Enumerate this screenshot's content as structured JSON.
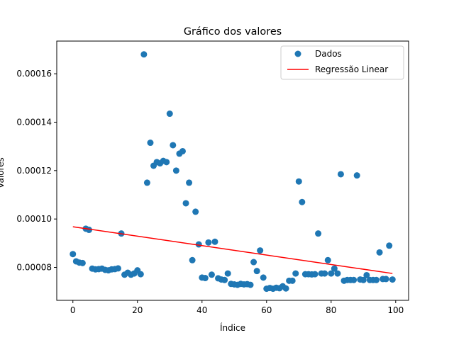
{
  "chart_data": {
    "type": "scatter",
    "title": "Gráfico dos valores",
    "xlabel": "Índice",
    "ylabel": "Valores",
    "xlim": [
      -5.0,
      104.0
    ],
    "ylim": [
      6.64e-05,
      0.0001735
    ],
    "xticks": [
      0,
      20,
      40,
      60,
      80,
      100
    ],
    "xtick_labels": [
      "0",
      "20",
      "40",
      "60",
      "80",
      "100"
    ],
    "yticks": [
      8e-05,
      0.0001,
      0.00012,
      0.00014,
      0.00016
    ],
    "ytick_labels": [
      "0.00008",
      "0.00010",
      "0.00012",
      "0.00014",
      "0.00016"
    ],
    "grid": false,
    "legend_position": "top-right",
    "colors": {
      "points": "#1f77b4",
      "regression": "#ff0000"
    },
    "series": [
      {
        "name": "Dados",
        "type": "scatter",
        "x": [
          0,
          1,
          2,
          3,
          4,
          5,
          6,
          7,
          8,
          9,
          10,
          11,
          12,
          13,
          14,
          15,
          16,
          17,
          18,
          19,
          20,
          21,
          22,
          23,
          24,
          25,
          26,
          27,
          28,
          29,
          30,
          31,
          32,
          33,
          34,
          35,
          36,
          37,
          38,
          39,
          40,
          41,
          42,
          43,
          44,
          45,
          46,
          47,
          48,
          49,
          50,
          51,
          52,
          53,
          54,
          55,
          56,
          57,
          58,
          59,
          60,
          61,
          62,
          63,
          64,
          65,
          66,
          67,
          68,
          69,
          70,
          71,
          72,
          73,
          74,
          75,
          76,
          77,
          78,
          79,
          80,
          81,
          82,
          83,
          84,
          85,
          86,
          87,
          88,
          89,
          90,
          91,
          92,
          93,
          94,
          95,
          96,
          97,
          98,
          99
        ],
        "y": [
          8.55e-05,
          8.25e-05,
          8.2e-05,
          8.18e-05,
          9.6e-05,
          9.55e-05,
          7.95e-05,
          7.92e-05,
          7.93e-05,
          7.95e-05,
          7.9e-05,
          7.88e-05,
          7.92e-05,
          7.93e-05,
          7.96e-05,
          9.4e-05,
          7.7e-05,
          7.78e-05,
          7.7e-05,
          7.75e-05,
          7.88e-05,
          7.72e-05,
          0.000168,
          0.000115,
          0.0001315,
          0.000122,
          0.0001235,
          0.000123,
          0.000124,
          0.0001235,
          0.0001435,
          0.0001305,
          0.00012,
          0.000127,
          0.000128,
          0.0001065,
          0.000115,
          8.3e-05,
          0.000103,
          8.95e-05,
          7.58e-05,
          7.56e-05,
          9.03e-05,
          7.7e-05,
          9.06e-05,
          7.55e-05,
          7.5e-05,
          7.48e-05,
          7.75e-05,
          7.32e-05,
          7.3e-05,
          7.28e-05,
          7.32e-05,
          7.3e-05,
          7.31e-05,
          7.28e-05,
          8.22e-05,
          7.85e-05,
          8.7e-05,
          7.58e-05,
          7.12e-05,
          7.15e-05,
          7.12e-05,
          7.16e-05,
          7.14e-05,
          7.22e-05,
          7.13e-05,
          7.45e-05,
          7.45e-05,
          7.75e-05,
          0.0001155,
          0.000107,
          7.72e-05,
          7.72e-05,
          7.71e-05,
          7.72e-05,
          9.4e-05,
          7.75e-05,
          7.75e-05,
          8.3e-05,
          7.75e-05,
          7.95e-05,
          7.75e-05,
          0.0001185,
          7.45e-05,
          7.48e-05,
          7.48e-05,
          7.48e-05,
          0.000118,
          7.5e-05,
          7.48e-05,
          7.68e-05,
          7.48e-05,
          7.48e-05,
          7.48e-05,
          8.62e-05,
          7.52e-05,
          7.52e-05,
          8.9e-05,
          7.5e-05
        ]
      },
      {
        "name": "Regressão Linear",
        "type": "line",
        "x": [
          0,
          99
        ],
        "y": [
          9.68e-05,
          7.75e-05
        ]
      }
    ]
  }
}
